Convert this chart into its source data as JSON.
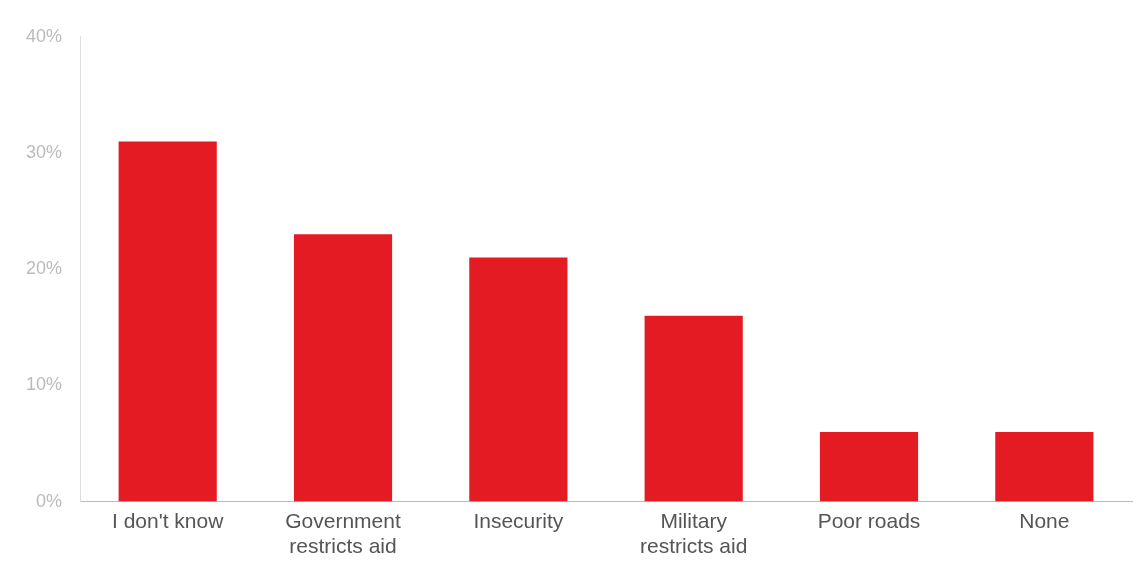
{
  "chart_data": {
    "type": "bar",
    "categories": [
      "I don't know",
      "Government restricts aid",
      "Insecurity",
      "Military restricts aid",
      "Poor roads",
      "None"
    ],
    "values": [
      31,
      23,
      21,
      16,
      6,
      6
    ],
    "color": "#e51b23",
    "ylim": [
      0,
      40
    ],
    "yticks": [
      {
        "value": 0,
        "label": "0%"
      },
      {
        "value": 10,
        "label": "10%"
      },
      {
        "value": 20,
        "label": "20%"
      },
      {
        "value": 30,
        "label": "30%"
      },
      {
        "value": 40,
        "label": "40%"
      }
    ],
    "grid": false,
    "legend": false
  }
}
